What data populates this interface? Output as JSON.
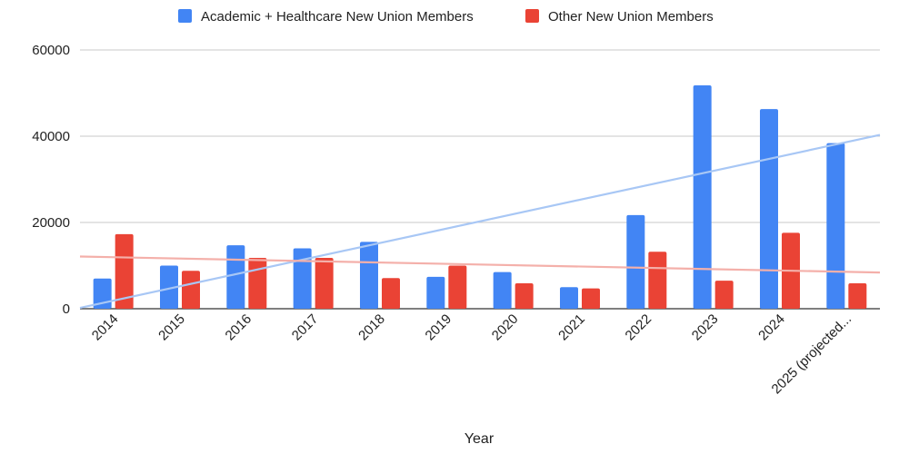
{
  "chart_data": {
    "type": "bar",
    "title": "",
    "xlabel": "Year",
    "ylabel": "",
    "ylim": [
      0,
      60000
    ],
    "yticks": [
      0,
      20000,
      40000,
      60000
    ],
    "categories": [
      "2014",
      "2015",
      "2016",
      "2017",
      "2018",
      "2019",
      "2020",
      "2021",
      "2022",
      "2023",
      "2024",
      "2025 (projected..."
    ],
    "series": [
      {
        "name": "Academic + Healthcare New Union Members",
        "color": "#4285F4",
        "values": [
          7000,
          10000,
          14700,
          14000,
          15500,
          7400,
          8500,
          5000,
          21700,
          51800,
          46300,
          38400
        ]
      },
      {
        "name": "Other New Union Members",
        "color": "#EA4335",
        "values": [
          17300,
          8800,
          11800,
          11800,
          7100,
          10000,
          5900,
          4700,
          13200,
          6500,
          17600,
          5900
        ]
      }
    ],
    "trendlines": [
      {
        "series": "Academic + Healthcare New Union Members",
        "color": "#A8C7F5",
        "start": 200,
        "end": 40300
      },
      {
        "series": "Other New Union Members",
        "color": "#F4B0AA",
        "start": 12100,
        "end": 8400
      }
    ],
    "grid": true,
    "legend": "top"
  }
}
